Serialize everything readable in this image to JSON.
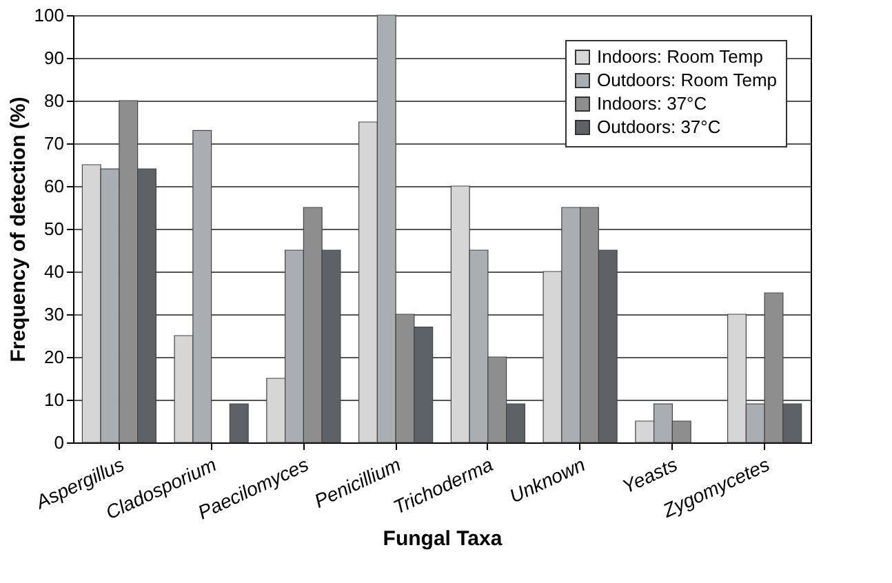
{
  "chart_data": {
    "type": "bar",
    "xlabel": "Fungal Taxa",
    "ylabel": "Frequency of detection (%)",
    "categories": [
      "Aspergillus",
      "Cladosporium",
      "Paecilomyces",
      "Penicillium",
      "Trichoderma",
      "Unknown",
      "Yeasts",
      "Zygomycetes"
    ],
    "series": [
      {
        "name": "Indoors: Room Temp",
        "color": "#d6d6d6",
        "values": [
          65,
          25,
          15,
          75,
          60,
          40,
          5,
          30
        ]
      },
      {
        "name": "Outdoors: Room Temp",
        "color": "#a9aeb2",
        "values": [
          64,
          73,
          45,
          100,
          45,
          55,
          9,
          9
        ]
      },
      {
        "name": "Indoors: 37°C",
        "color": "#8e8e8e",
        "values": [
          80,
          null,
          55,
          30,
          20,
          55,
          5,
          35
        ]
      },
      {
        "name": "Outdoors: 37°C",
        "color": "#5c6266",
        "values": [
          64,
          9,
          45,
          27,
          9,
          45,
          null,
          9
        ]
      }
    ],
    "ylim": [
      0,
      100
    ],
    "yticks": [
      0,
      10,
      20,
      30,
      40,
      50,
      60,
      70,
      80,
      90,
      100
    ],
    "grid": "y",
    "legend": "top right"
  }
}
